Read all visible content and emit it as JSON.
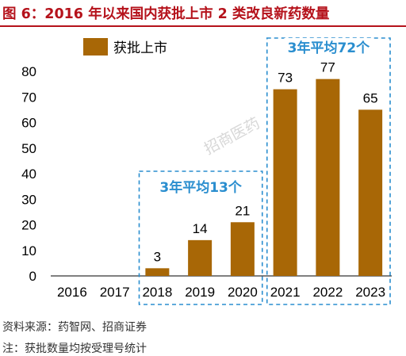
{
  "figure": {
    "title": "图 6：2016 年以来国内获批上市 2 类改良新药数量",
    "source": "资料来源：药智网、招商证券",
    "note": "注：获批数量均按受理号统计",
    "watermark": "招商医药"
  },
  "chart_data": {
    "type": "bar",
    "categories": [
      "2016",
      "2017",
      "2018",
      "2019",
      "2020",
      "2021",
      "2022",
      "2023"
    ],
    "series": [
      {
        "name": "获批上市",
        "values": [
          0,
          0,
          3,
          14,
          21,
          73,
          77,
          65
        ]
      }
    ],
    "data_labels": [
      "",
      "",
      "3",
      "14",
      "21",
      "73",
      "77",
      "65"
    ],
    "yticks": [
      0,
      10,
      20,
      30,
      40,
      50,
      60,
      70,
      80
    ],
    "ylim": [
      0,
      80
    ],
    "legend_position": "top-left",
    "grid": false,
    "bar_color": "#a86706",
    "annotations": [
      {
        "text": "3年平均13个",
        "categories": [
          "2018",
          "2019",
          "2020"
        ]
      },
      {
        "text": "3年平均72个",
        "categories": [
          "2021",
          "2022",
          "2023"
        ]
      }
    ],
    "annotation_color": "#2a8ecf"
  }
}
